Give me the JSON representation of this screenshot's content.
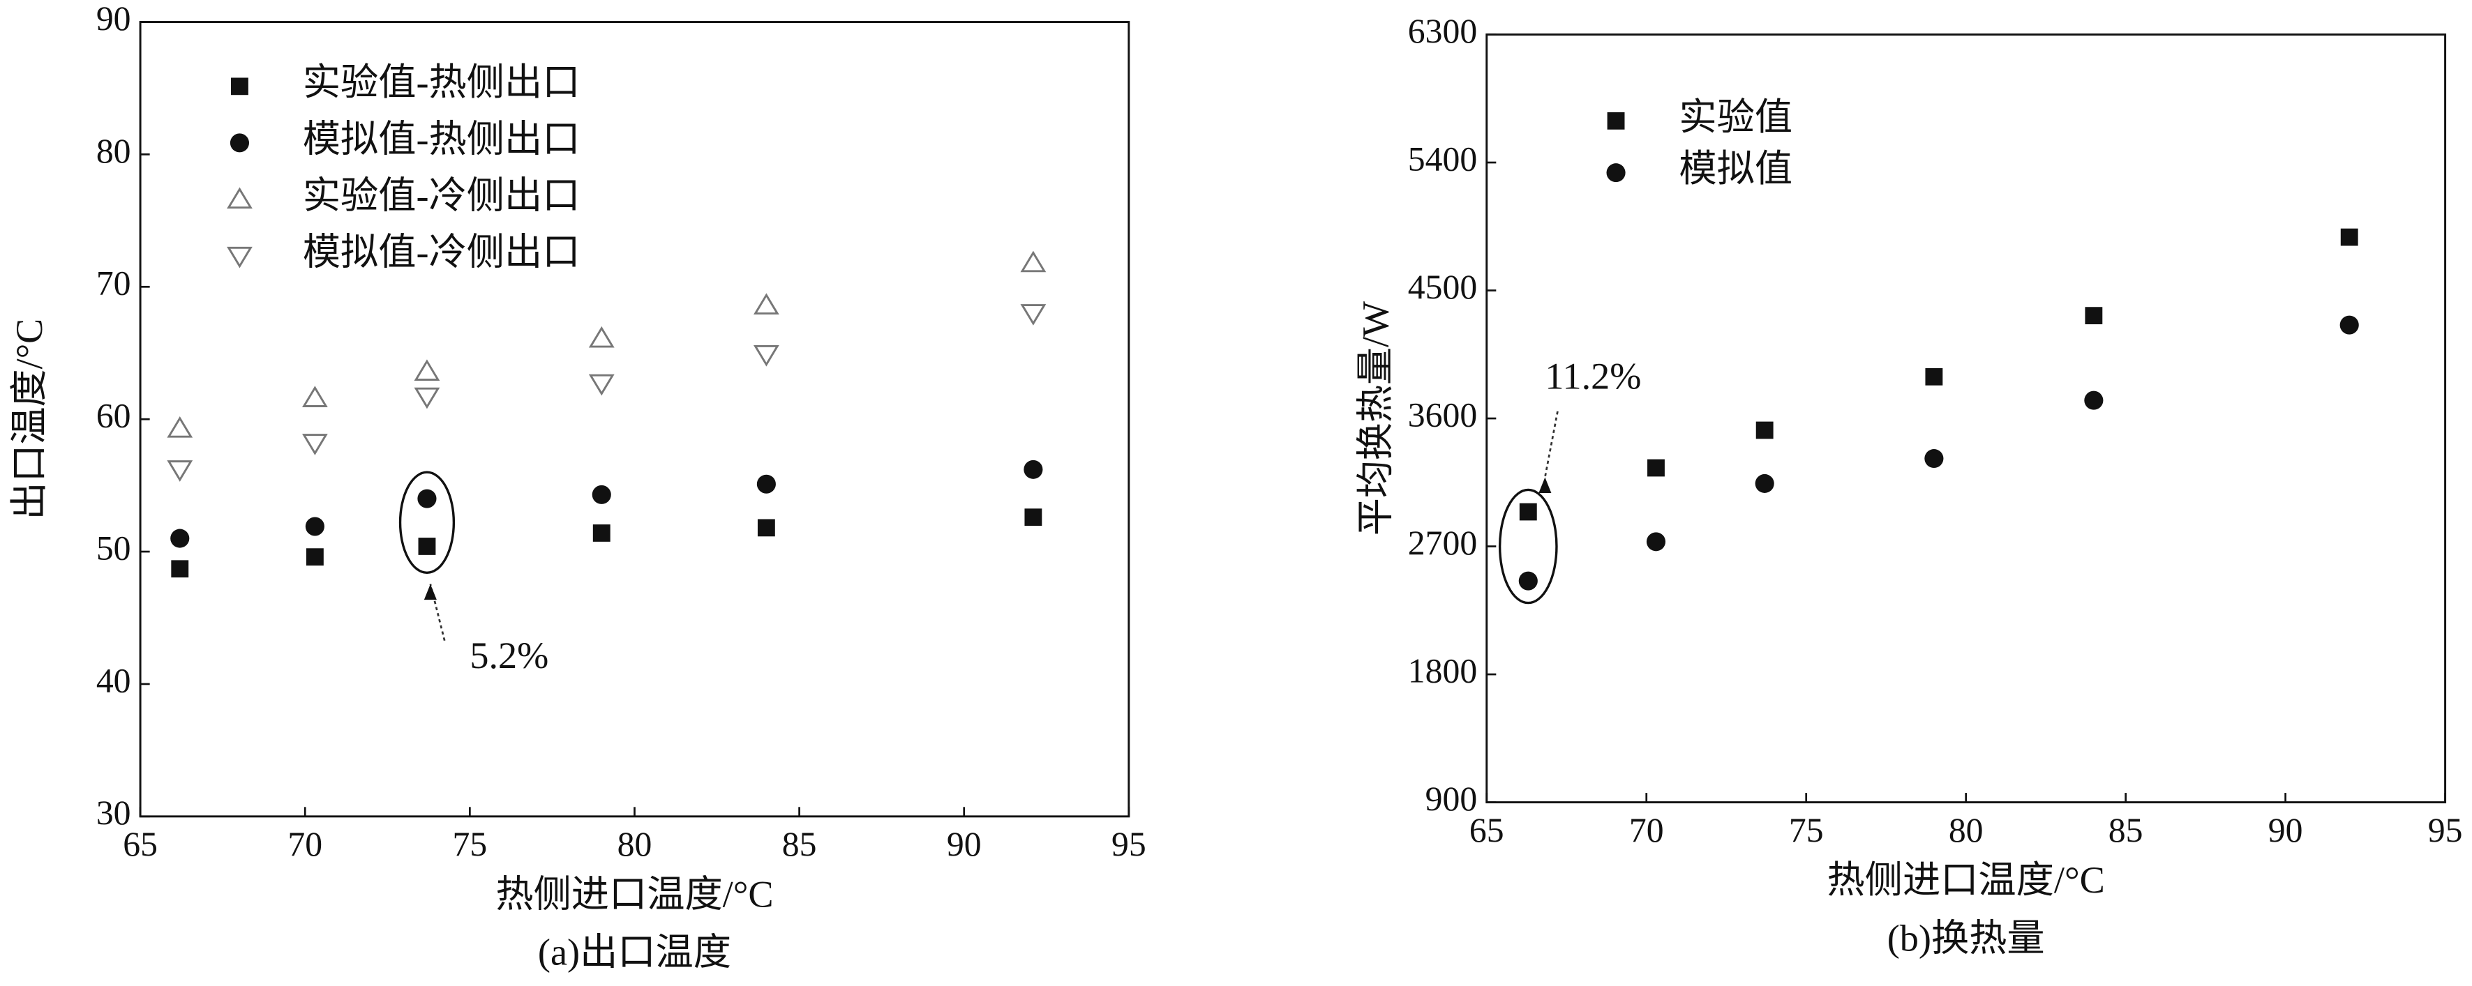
{
  "chart_data": [
    {
      "type": "scatter",
      "caption": "(a)出口温度",
      "xlabel": "热侧进口温度/°C",
      "ylabel": "出口温度/°C",
      "xlim": [
        65,
        95
      ],
      "xticks": [
        65,
        70,
        75,
        80,
        85,
        90,
        95
      ],
      "ylim": [
        30,
        90
      ],
      "yticks": [
        30,
        40,
        50,
        60,
        70,
        80,
        90
      ],
      "x": [
        66.2,
        70.3,
        73.7,
        79.0,
        84.0,
        92.1
      ],
      "series": [
        {
          "name": "实验值-热侧出口",
          "color": "#111111",
          "marker": "square",
          "values": [
            48.7,
            49.6,
            50.4,
            51.4,
            51.8,
            52.6
          ]
        },
        {
          "name": "模拟值-热侧出口",
          "color": "#111111",
          "marker": "circle",
          "values": [
            51.0,
            51.9,
            54.0,
            54.3,
            55.1,
            56.2
          ]
        },
        {
          "name": "实验值-冷侧出口",
          "color": "#777777",
          "marker": "triangle-up",
          "values": [
            59.3,
            61.6,
            63.6,
            66.1,
            68.6,
            71.8
          ]
        },
        {
          "name": "模拟值-冷侧出口",
          "color": "#777777",
          "marker": "triangle-down",
          "values": [
            56.2,
            58.2,
            61.7,
            62.7,
            64.9,
            68.0
          ]
        }
      ],
      "annotations": [
        "5.2%"
      ]
    },
    {
      "type": "scatter",
      "caption": "(b)换热量",
      "xlabel": "热侧进口温度/°C",
      "ylabel": "平均换热量/W",
      "xlim": [
        65,
        95
      ],
      "xticks": [
        65,
        70,
        75,
        80,
        85,
        90,
        95
      ],
      "ylim": [
        900,
        6300
      ],
      "yticks": [
        900,
        1800,
        2700,
        3600,
        4500,
        5400,
        6300
      ],
      "x": [
        66.3,
        70.3,
        73.7,
        79.0,
        84.0,
        92.0
      ],
      "series": [
        {
          "name": "实验值",
          "color": "#111111",
          "marker": "square",
          "values": [
            2943,
            3252,
            3517,
            3893,
            4323,
            4875
          ]
        },
        {
          "name": "模拟值",
          "color": "#111111",
          "marker": "circle",
          "values": [
            2457,
            2733,
            3142,
            3318,
            3727,
            4257
          ]
        }
      ],
      "annotations": [
        "11.2%"
      ]
    }
  ]
}
